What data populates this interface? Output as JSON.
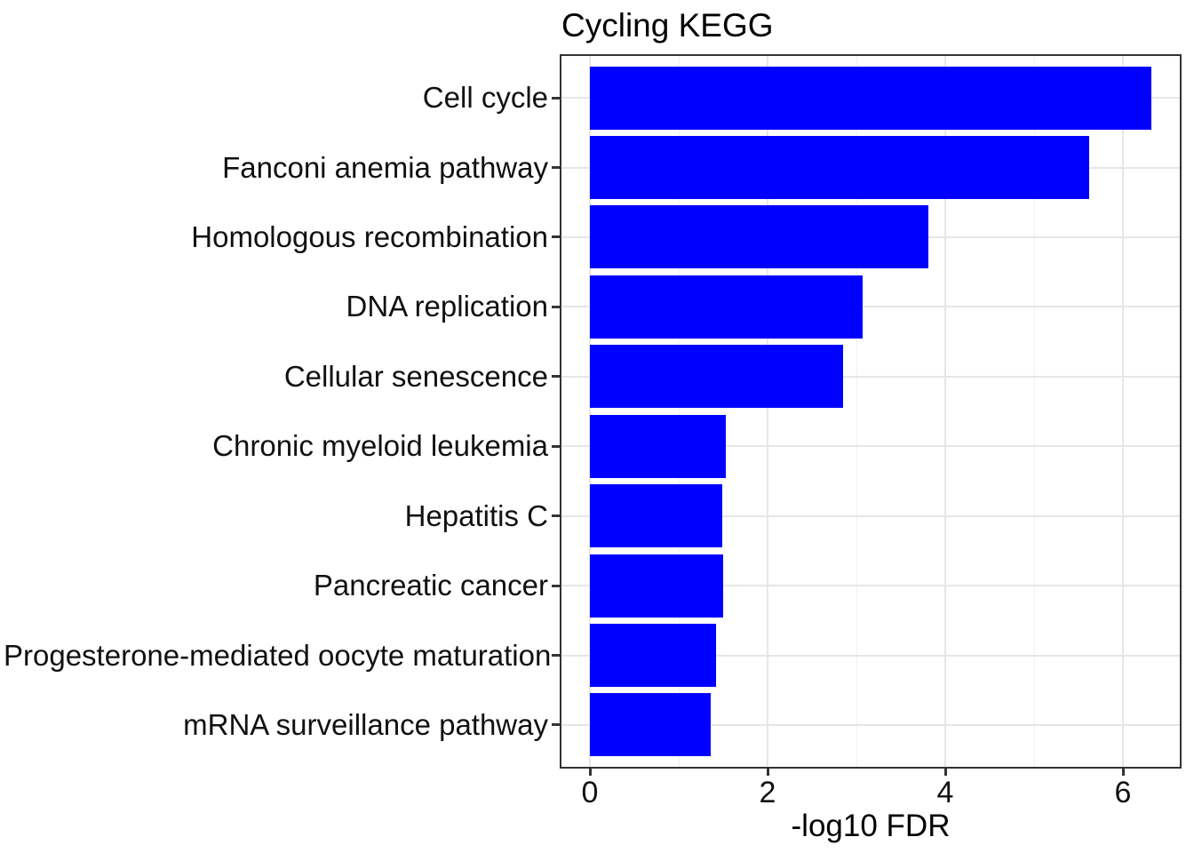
{
  "chart_data": {
    "type": "bar",
    "orientation": "horizontal",
    "title": "Cycling KEGG",
    "xlabel": "-log10 FDR",
    "ylabel": "",
    "categories": [
      "Cell cycle",
      "Fanconi anemia pathway",
      "Homologous recombination",
      "DNA replication",
      "Cellular senescence",
      "Chronic myeloid leukemia",
      "Hepatitis C",
      "Pancreatic cancer",
      "Progesterone-mediated oocyte maturation",
      "mRNA surveillance pathway"
    ],
    "values": [
      6.32,
      5.62,
      3.81,
      3.07,
      2.85,
      1.53,
      1.49,
      1.5,
      1.42,
      1.36
    ],
    "xlim": [
      -0.32,
      6.64
    ],
    "x_major_ticks": [
      0,
      2,
      4,
      6
    ],
    "x_minor_ticks": [
      1,
      3,
      5
    ],
    "x_tick_labels": [
      "0",
      "2",
      "4",
      "6"
    ],
    "grid": true,
    "legend_position": "none",
    "bar_relative_width": 0.9,
    "colors": {
      "bar": "#0000FF",
      "panel_border": "#333333",
      "grid_major": "#E6E6E6",
      "grid_minor": "#F1F1F1",
      "tick": "#333333",
      "text": "#111111",
      "title_text": "#000000",
      "background": "#FFFFFF"
    }
  }
}
